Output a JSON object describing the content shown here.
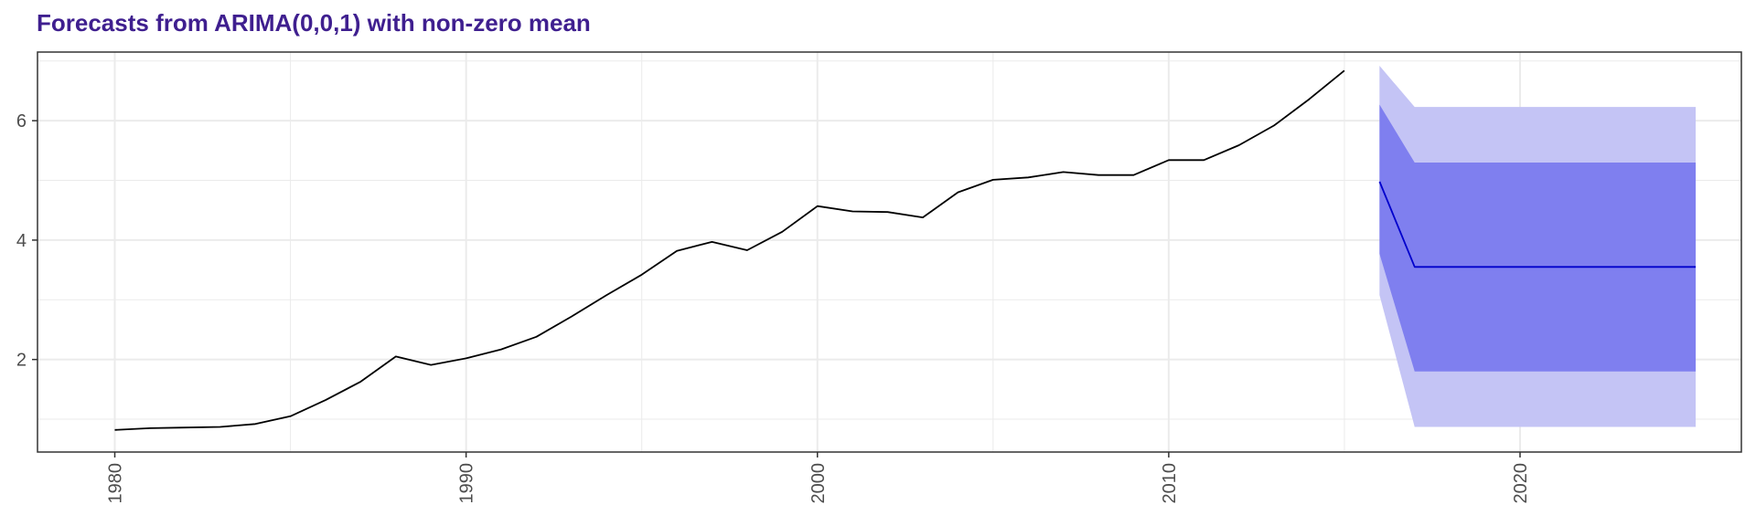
{
  "chart_data": {
    "type": "line",
    "title": "Forecasts from ARIMA(0,0,1) with non-zero mean",
    "xlabel": "",
    "ylabel": "",
    "xlim": [
      1977.8,
      2026.3
    ],
    "ylim": [
      0.45,
      7.15
    ],
    "x_ticks": [
      1980,
      1990,
      2000,
      2010,
      2020
    ],
    "y_ticks": [
      2,
      4,
      6
    ],
    "grid": true,
    "series": [
      {
        "x": [
          1980,
          1981,
          1982,
          1983,
          1984,
          1985,
          1986,
          1987,
          1988,
          1989,
          1990,
          1991,
          1992,
          1993,
          1994,
          1995,
          1996,
          1997,
          1998,
          1999,
          2000,
          2001,
          2002,
          2003,
          2004,
          2005,
          2006,
          2007,
          2008,
          2009,
          2010,
          2011,
          2012,
          2013,
          2014,
          2015
        ],
        "values": [
          0.82,
          0.85,
          0.86,
          0.87,
          0.92,
          1.05,
          1.32,
          1.63,
          2.05,
          1.91,
          2.02,
          2.17,
          2.38,
          2.72,
          3.08,
          3.42,
          3.82,
          3.97,
          3.83,
          4.14,
          4.57,
          4.48,
          4.47,
          4.38,
          4.8,
          5.01,
          5.05,
          5.14,
          5.09,
          5.09,
          5.34,
          5.34,
          5.59,
          5.92,
          6.36,
          6.84
        ]
      },
      {
        "x": [
          2016,
          2017,
          2018,
          2019,
          2020,
          2021,
          2022,
          2023,
          2024,
          2025
        ],
        "values": [
          4.98,
          3.55,
          3.55,
          3.55,
          3.55,
          3.55,
          3.55,
          3.55,
          3.55,
          3.55
        ]
      }
    ],
    "intervals": [
      {
        "level": 95,
        "x": [
          2016,
          2017,
          2018,
          2019,
          2020,
          2021,
          2022,
          2023,
          2024,
          2025
        ],
        "lower": [
          3.08,
          0.87,
          0.87,
          0.87,
          0.87,
          0.87,
          0.87,
          0.87,
          0.87,
          0.87
        ],
        "upper": [
          6.92,
          6.23,
          6.23,
          6.23,
          6.23,
          6.23,
          6.23,
          6.23,
          6.23,
          6.23
        ]
      },
      {
        "level": 80,
        "x": [
          2016,
          2017,
          2018,
          2019,
          2020,
          2021,
          2022,
          2023,
          2024,
          2025
        ],
        "lower": [
          3.77,
          1.8,
          1.8,
          1.8,
          1.8,
          1.8,
          1.8,
          1.8,
          1.8,
          1.8
        ],
        "upper": [
          6.27,
          5.3,
          5.3,
          5.3,
          5.3,
          5.3,
          5.3,
          5.3,
          5.3,
          5.3
        ]
      }
    ],
    "colors": {
      "history": "#000000",
      "forecast": "#0000cc",
      "interval_95": "#c4c4f5",
      "interval_80": "#7f7fef",
      "grid": "#ebebeb",
      "title": "#3f1f8f"
    }
  }
}
